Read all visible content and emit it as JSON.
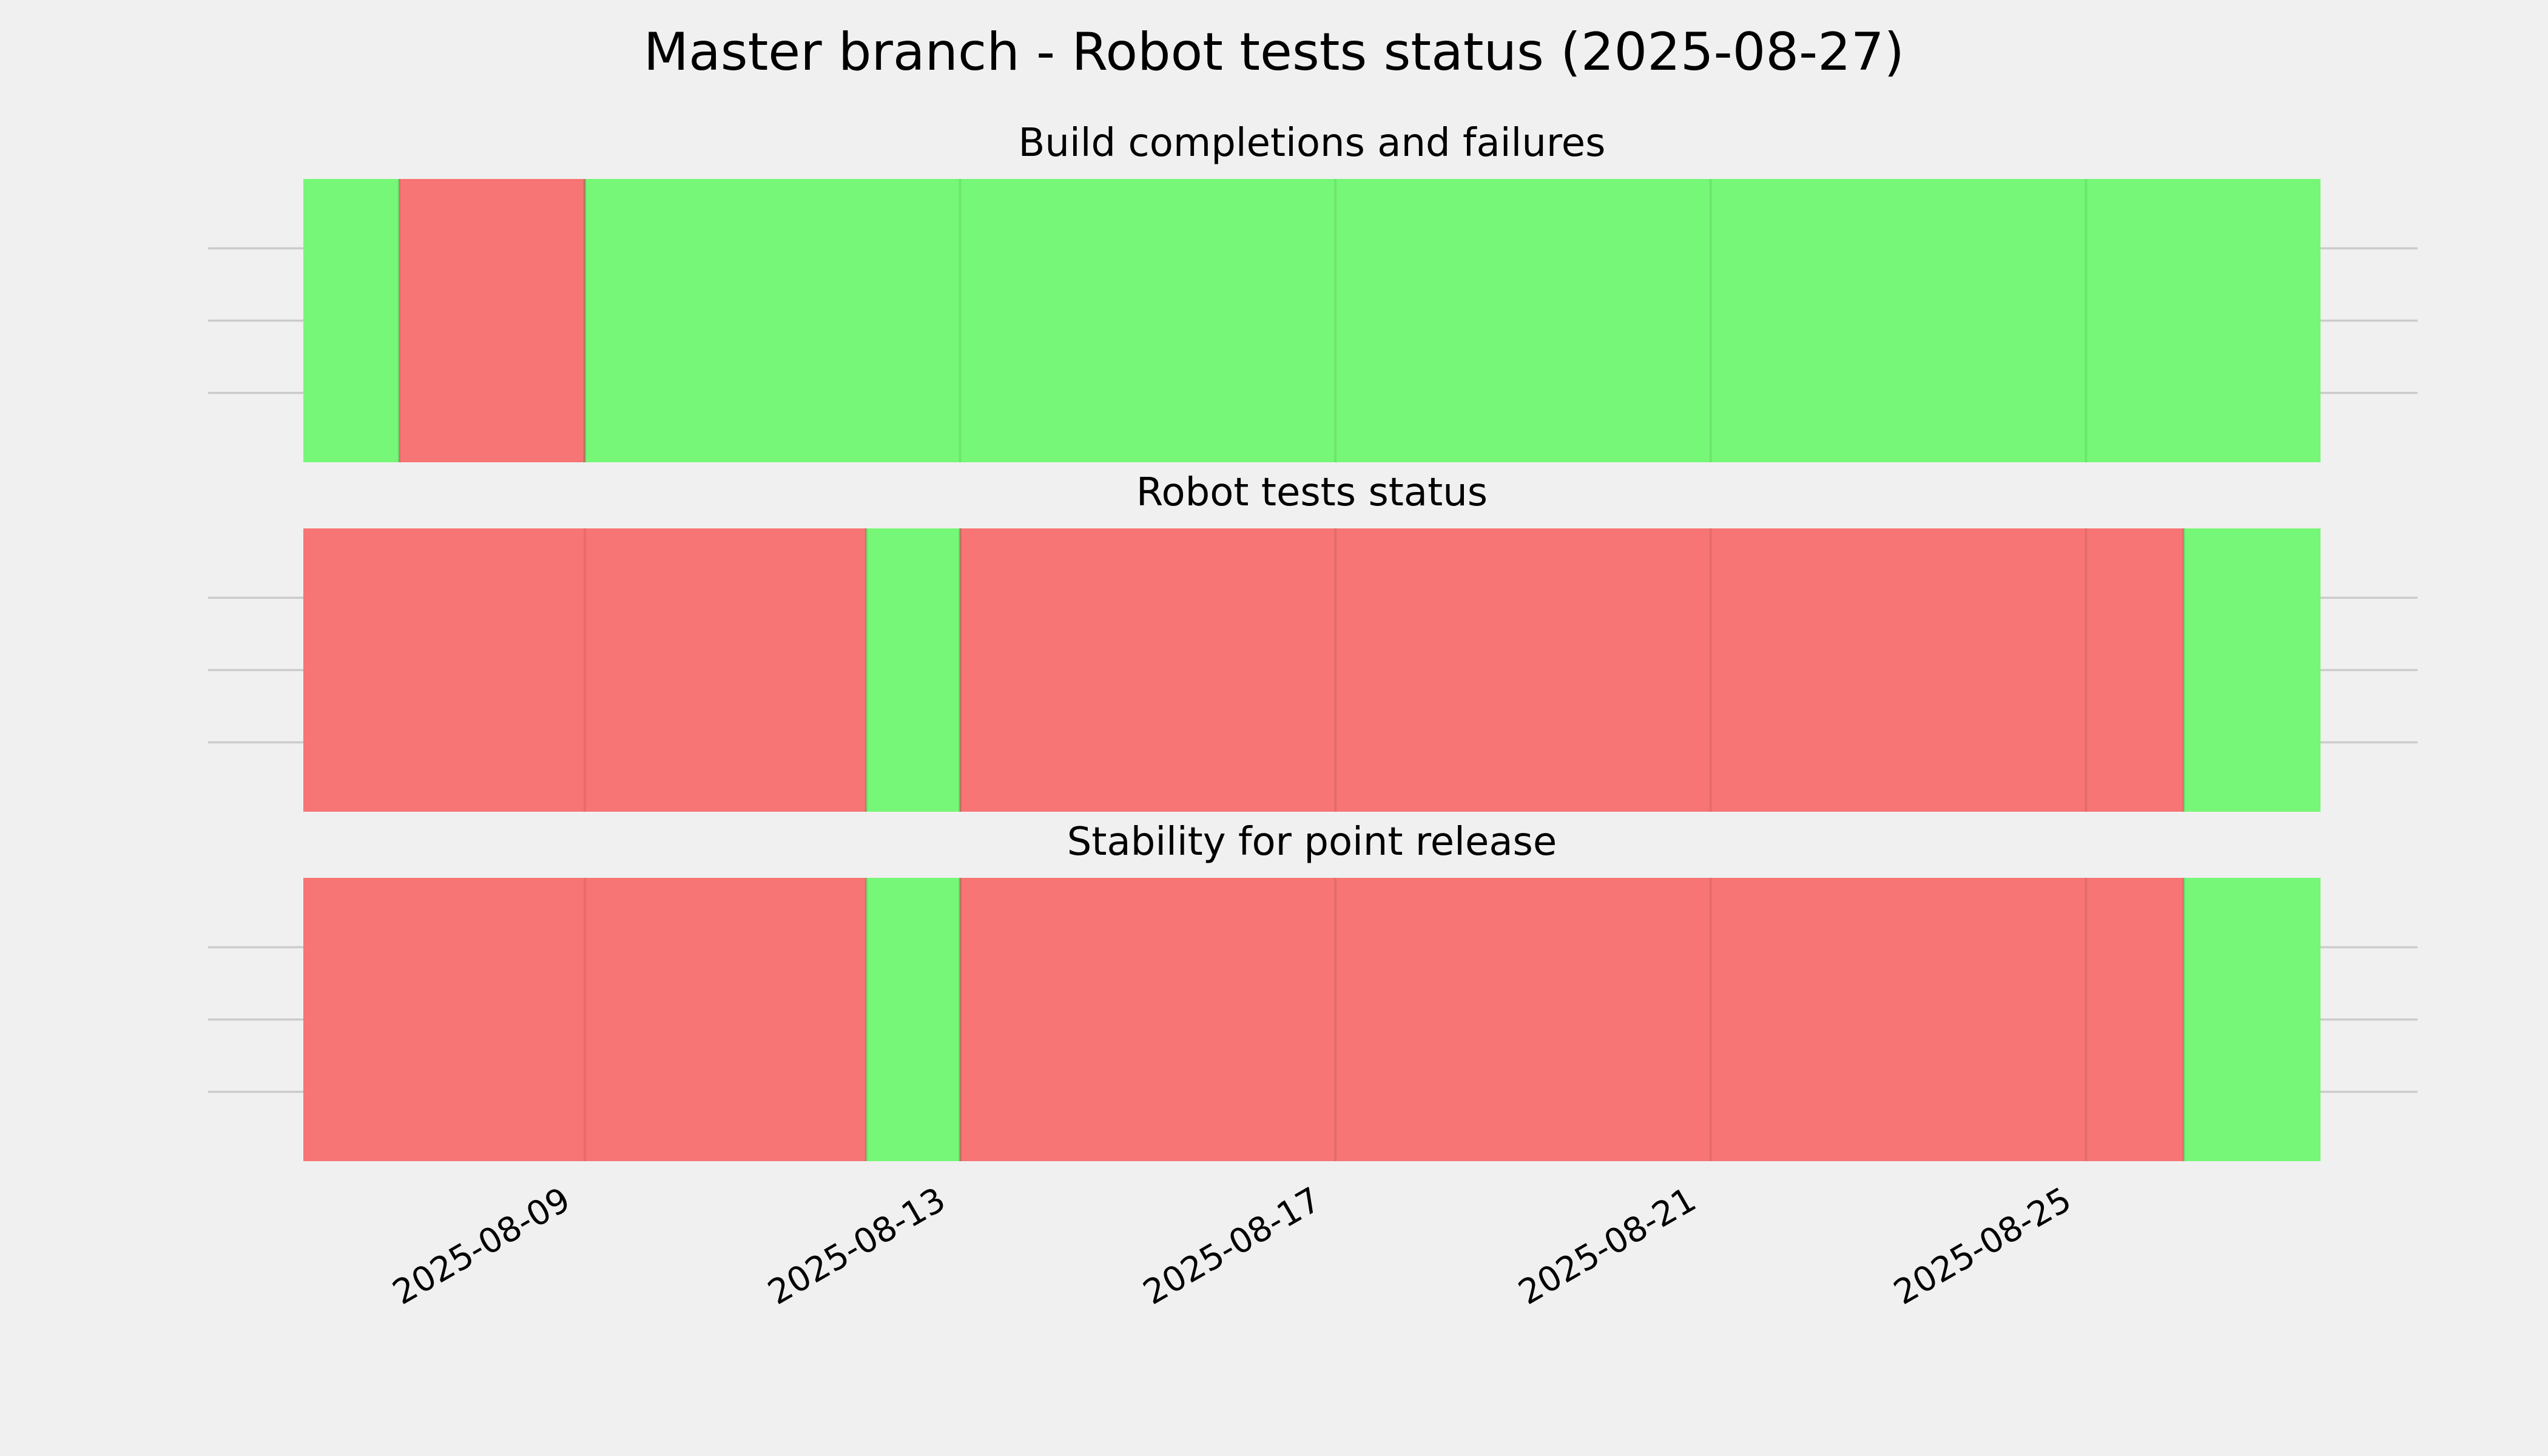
{
  "title": "Master branch - Robot tests status (2025-08-27)",
  "colors": {
    "background": "#f0f0f0",
    "pass": "#76f777",
    "fail": "#f77574",
    "grid": "#cbcbcb"
  },
  "chart_data": [
    {
      "type": "area",
      "title": "Build completions and failures",
      "xlim": [
        "2025-08-06",
        "2025-08-27T12:00"
      ],
      "xticks": [
        "2025-08-09",
        "2025-08-13",
        "2025-08-17",
        "2025-08-21",
        "2025-08-25"
      ],
      "grid": true,
      "segments": [
        {
          "start": "2025-08-06",
          "end": "2025-08-07T00:30",
          "status": "pass"
        },
        {
          "start": "2025-08-07T00:30",
          "end": "2025-08-09T00:00",
          "status": "fail"
        },
        {
          "start": "2025-08-09T00:00",
          "end": "2025-08-27T12:00",
          "status": "pass"
        }
      ]
    },
    {
      "type": "area",
      "title": "Robot tests status",
      "xlim": [
        "2025-08-06",
        "2025-08-27T12:00"
      ],
      "xticks": [
        "2025-08-09",
        "2025-08-13",
        "2025-08-17",
        "2025-08-21",
        "2025-08-25"
      ],
      "grid": true,
      "segments": [
        {
          "start": "2025-08-06",
          "end": "2025-08-12T00:00",
          "status": "fail"
        },
        {
          "start": "2025-08-12T00:00",
          "end": "2025-08-13T00:00",
          "status": "pass"
        },
        {
          "start": "2025-08-13T00:00",
          "end": "2025-08-26T01:00",
          "status": "fail"
        },
        {
          "start": "2025-08-26T01:00",
          "end": "2025-08-27T12:00",
          "status": "pass"
        }
      ]
    },
    {
      "type": "area",
      "title": "Stability for point release",
      "xlim": [
        "2025-08-06",
        "2025-08-27T12:00"
      ],
      "xticks": [
        "2025-08-09",
        "2025-08-13",
        "2025-08-17",
        "2025-08-21",
        "2025-08-25"
      ],
      "grid": true,
      "segments": [
        {
          "start": "2025-08-06",
          "end": "2025-08-12T00:00",
          "status": "fail"
        },
        {
          "start": "2025-08-12T00:00",
          "end": "2025-08-13T00:00",
          "status": "pass"
        },
        {
          "start": "2025-08-13T00:00",
          "end": "2025-08-26T01:00",
          "status": "fail"
        },
        {
          "start": "2025-08-26T01:00",
          "end": "2025-08-27T12:00",
          "status": "pass"
        }
      ]
    }
  ]
}
